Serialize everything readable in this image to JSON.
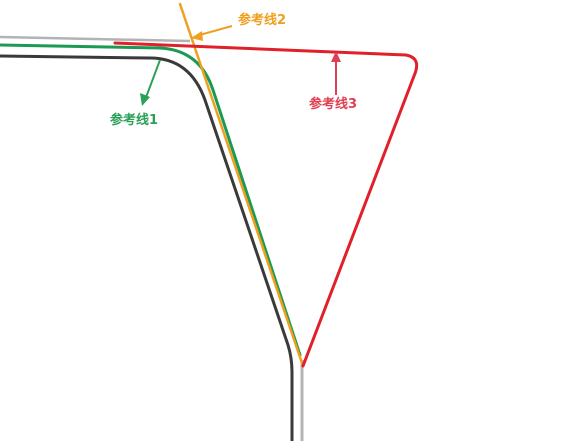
{
  "colors": {
    "background": "#ffffff",
    "gray_line": "#b3b3b3",
    "dark_line": "#3a3a3a",
    "green": "#1a9a52",
    "orange": "#f0a020",
    "red": "#e0202a",
    "green_label": "#2aa058",
    "orange_label": "#f0a020",
    "red_label": "#e04050"
  },
  "labels": {
    "line1": "参考线1",
    "line2": "参考线2",
    "line3": "参考线3"
  }
}
